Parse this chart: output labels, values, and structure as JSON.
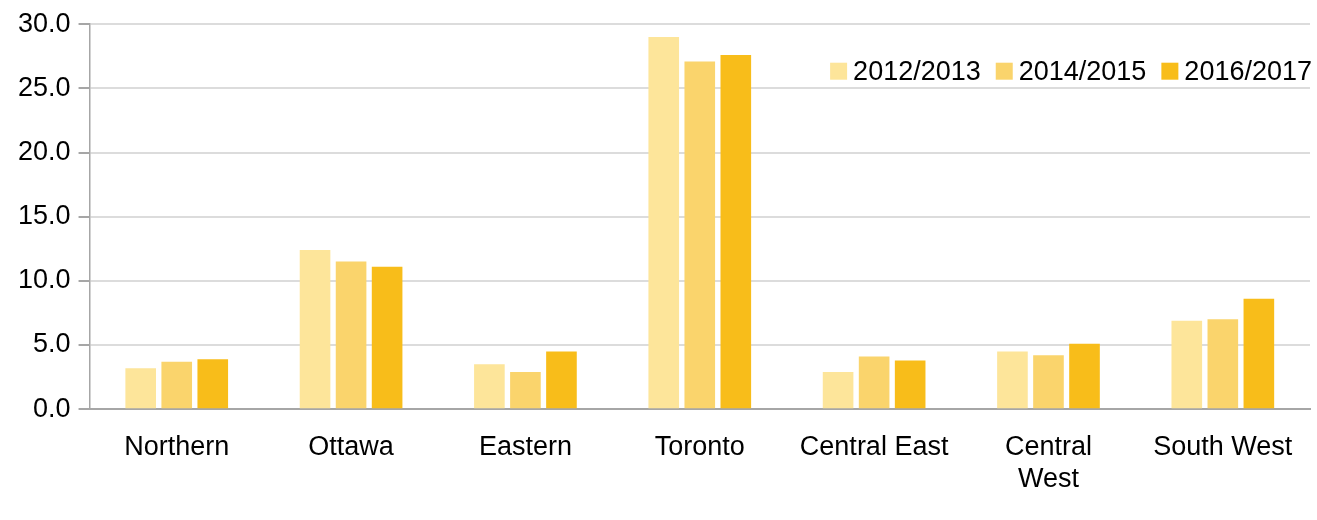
{
  "chart_data": {
    "type": "bar",
    "categories": [
      "Northern",
      "Ottawa",
      "Eastern",
      "Toronto",
      "Central East",
      "Central West",
      "South West"
    ],
    "series": [
      {
        "name": "2012/2013",
        "color": "#fde59a",
        "values": [
          3.2,
          12.4,
          3.5,
          29.0,
          2.9,
          4.5,
          6.9
        ]
      },
      {
        "name": "2014/2015",
        "color": "#fad46c",
        "values": [
          3.7,
          11.5,
          2.9,
          27.1,
          4.1,
          4.2,
          7.0
        ]
      },
      {
        "name": "2016/2017",
        "color": "#f8bd1a",
        "values": [
          3.9,
          11.1,
          4.5,
          27.6,
          3.8,
          5.1,
          8.6
        ]
      }
    ],
    "ylim": [
      0,
      30
    ],
    "yticks": [
      {
        "value": 0,
        "label": "0.0"
      },
      {
        "value": 5,
        "label": "5.0"
      },
      {
        "value": 10,
        "label": "10.0"
      },
      {
        "value": 15,
        "label": "15.0"
      },
      {
        "value": 20,
        "label": "20.0"
      },
      {
        "value": 25,
        "label": "25.0"
      },
      {
        "value": 30,
        "label": "30.0"
      }
    ],
    "grid": "y",
    "legend": "top right"
  }
}
